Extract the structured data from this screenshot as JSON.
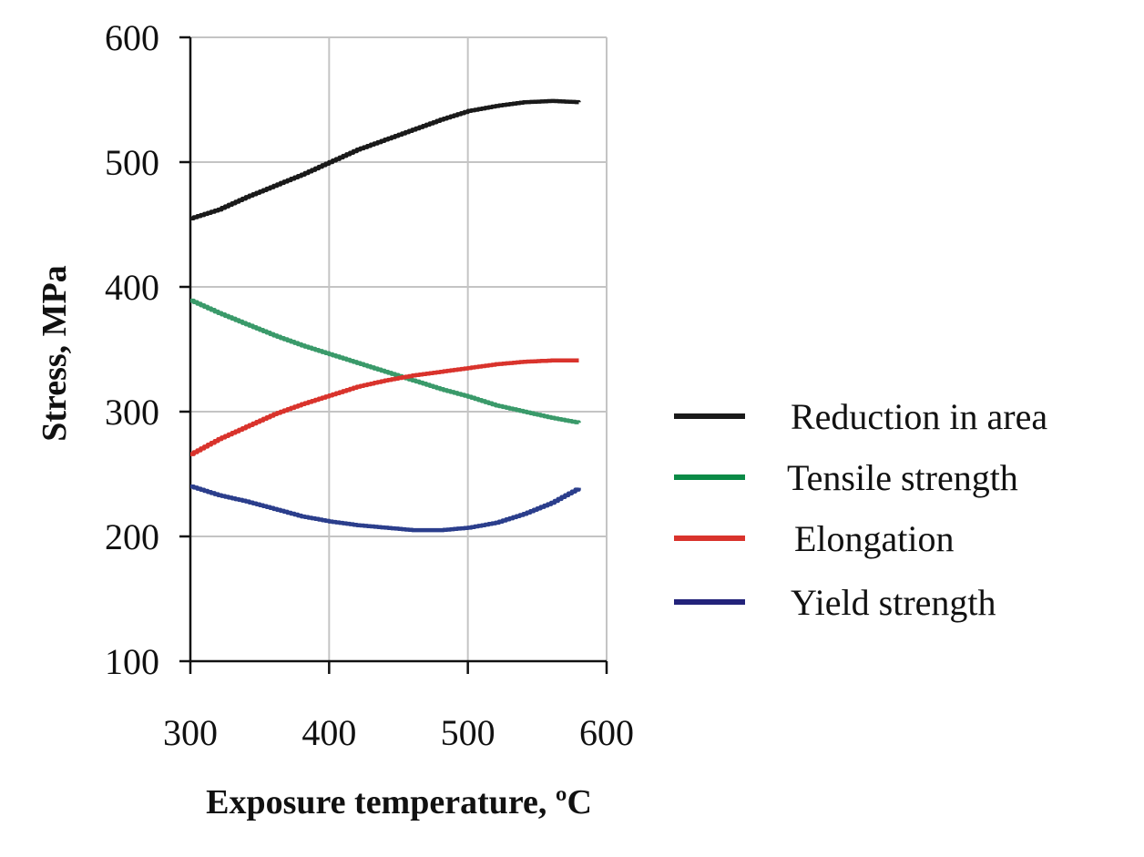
{
  "chart_data": {
    "type": "line",
    "xlabel": "Exposure temperature, ºC",
    "ylabel": "Stress, MPa",
    "xlim": [
      300,
      600
    ],
    "ylim": [
      100,
      600
    ],
    "x_ticks": [
      "300",
      "400",
      "500",
      "600"
    ],
    "y_ticks": [
      "100",
      "200",
      "300",
      "400",
      "500",
      "600"
    ],
    "grid": true,
    "legend_position": "right",
    "x": [
      300,
      320,
      340,
      360,
      380,
      400,
      420,
      440,
      460,
      480,
      500,
      520,
      540,
      560,
      580
    ],
    "series": [
      {
        "name": "Reduction in area",
        "color": "#1a1a1a",
        "values": [
          455,
          462,
          472,
          481,
          490,
          500,
          510,
          518,
          526,
          534,
          541,
          545,
          548,
          549,
          548
        ]
      },
      {
        "name": "Tensile strength",
        "color": "#3a9a6a",
        "values": [
          389,
          379,
          370,
          361,
          353,
          346,
          339,
          332,
          325,
          318,
          312,
          305,
          300,
          295,
          291
        ]
      },
      {
        "name": "Elongation",
        "color": "#d9332c",
        "values": [
          266,
          278,
          288,
          298,
          306,
          313,
          320,
          325,
          329,
          332,
          335,
          338,
          340,
          341,
          341
        ]
      },
      {
        "name": "Yield strength",
        "color": "#2b3e8c",
        "values": [
          240,
          233,
          228,
          222,
          216,
          212,
          209,
          207,
          205,
          205,
          207,
          211,
          218,
          227,
          239
        ]
      }
    ],
    "legend": [
      {
        "label": "Reduction in area",
        "color": "#1a1a1a"
      },
      {
        "label": "Tensile strength",
        "color": "#0a8a46"
      },
      {
        "label": "Elongation",
        "color": "#d9332c"
      },
      {
        "label": "Yield strength",
        "color": "#23237a"
      }
    ]
  }
}
